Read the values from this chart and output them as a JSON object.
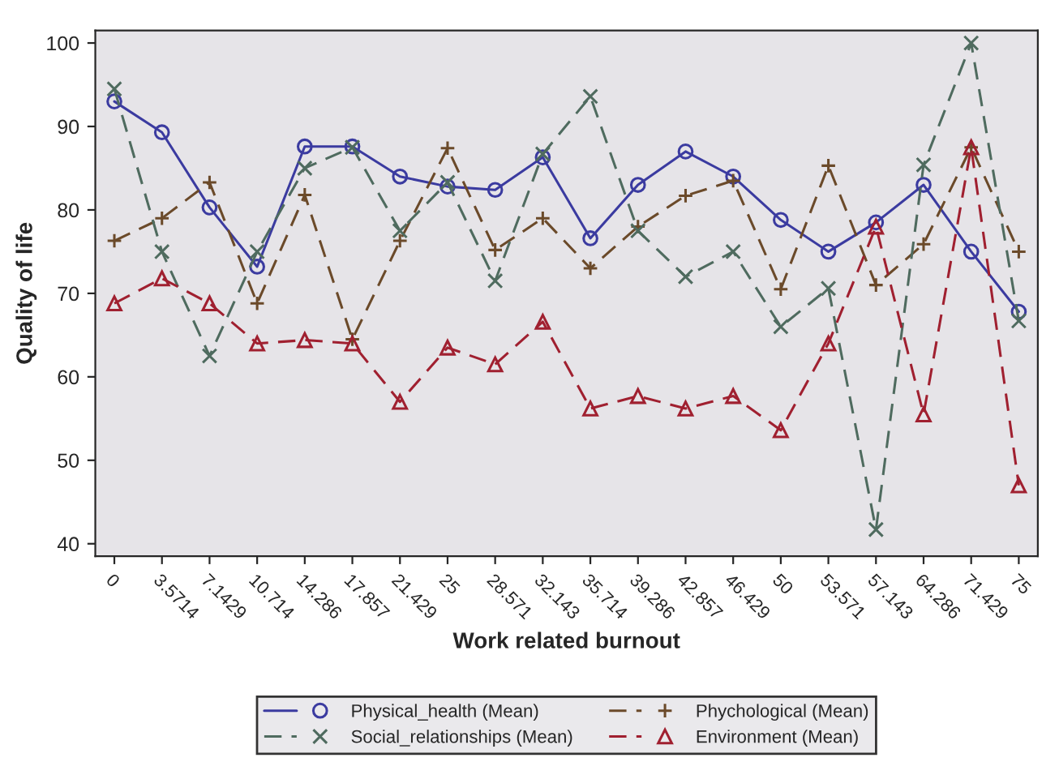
{
  "chart_data": {
    "type": "line",
    "xlabel": "Work related burnout",
    "ylabel": "Quality of life",
    "categories": [
      "0",
      "3.5714",
      "7.1429",
      "10.714",
      "14.286",
      "17.857",
      "21.429",
      "25",
      "28.571",
      "32.143",
      "35.714",
      "39.286",
      "42.857",
      "46.429",
      "50",
      "53.571",
      "57.143",
      "64.286",
      "71.429",
      "75"
    ],
    "series": [
      {
        "name": "Physical_health (Mean)",
        "color": "#3b3ba0",
        "marker": "circle",
        "line_style": "solid",
        "values": [
          93,
          89.3,
          80.3,
          73.2,
          87.6,
          87.6,
          84,
          82.8,
          82.4,
          86.3,
          76.6,
          83,
          87,
          84,
          78.8,
          75,
          78.5,
          83,
          75,
          67.8
        ]
      },
      {
        "name": "Phychological (Mean)",
        "color": "#6b4a2a",
        "marker": "plus",
        "line_style": "dashed",
        "values": [
          76.3,
          79,
          83.3,
          68.8,
          81.8,
          64.5,
          76.3,
          87.4,
          75.2,
          79,
          73,
          78,
          81.7,
          83.5,
          70.5,
          85.3,
          71,
          75.9,
          87.5,
          75
        ]
      },
      {
        "name": "Social_relationships (Mean)",
        "color": "#4f6b5f",
        "marker": "cross",
        "line_style": "dashed",
        "values": [
          94.5,
          75,
          62.5,
          75,
          85,
          87.5,
          77.5,
          83.3,
          71.5,
          86.7,
          93.6,
          77.5,
          72,
          75,
          66,
          70.6,
          41.7,
          85.4,
          100,
          66.7
        ]
      },
      {
        "name": "Environment (Mean)",
        "color": "#a02030",
        "marker": "triangle",
        "line_style": "dashed",
        "values": [
          68.8,
          71.8,
          68.8,
          64,
          64.4,
          64,
          57,
          63.5,
          61.5,
          66.6,
          56.2,
          57.7,
          56.2,
          57.7,
          53.6,
          64,
          78,
          55.5,
          87.5,
          47
        ]
      }
    ],
    "ylim": [
      38.5,
      101.5
    ],
    "yticks": [
      40,
      50,
      60,
      70,
      80,
      90,
      100
    ],
    "grid": false,
    "legend": "bottom"
  }
}
